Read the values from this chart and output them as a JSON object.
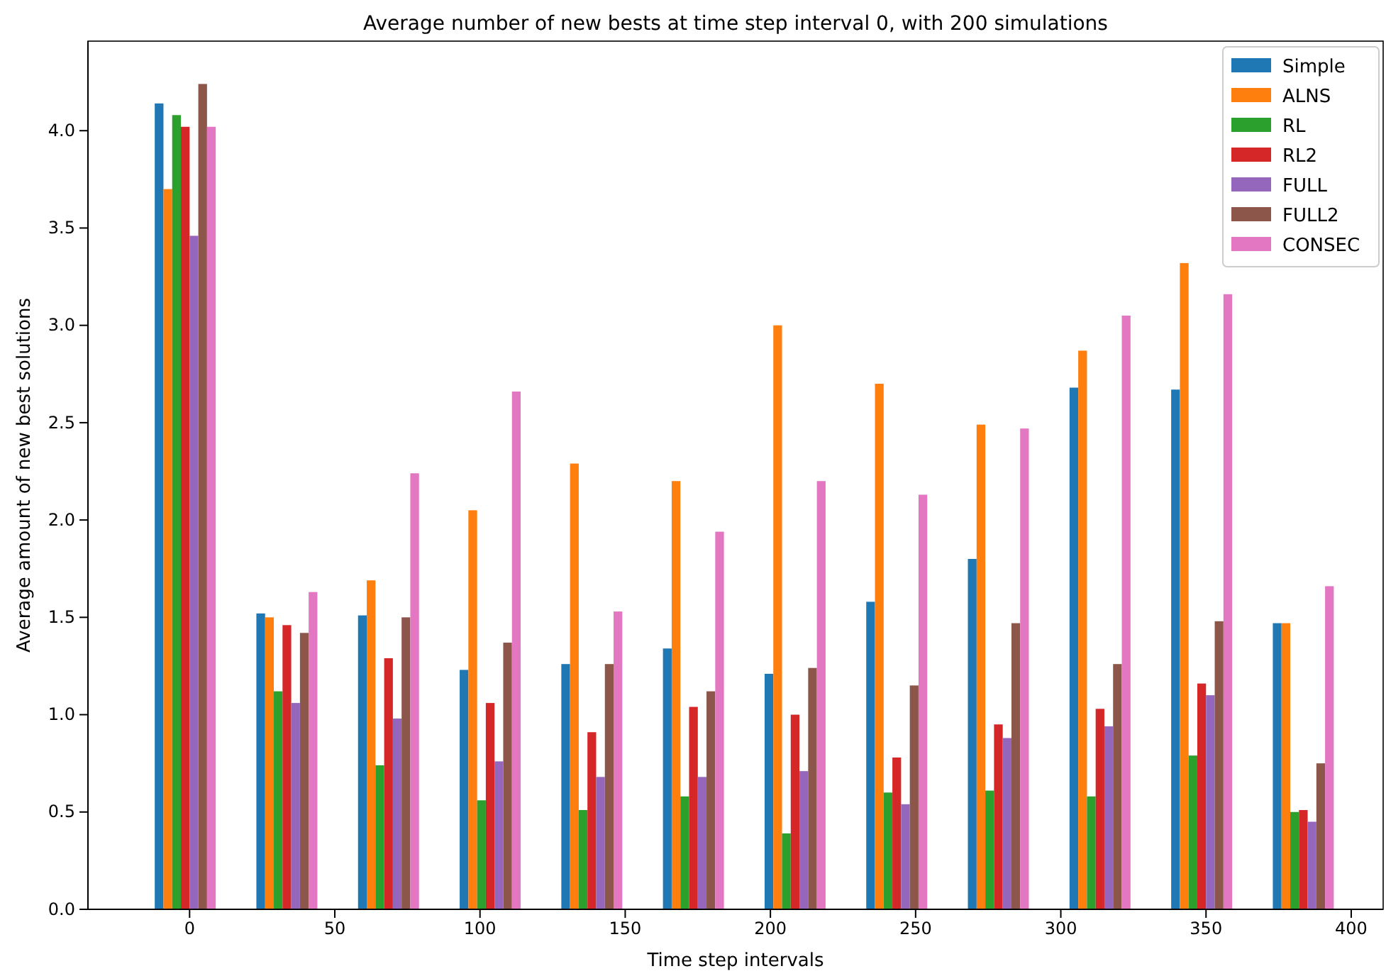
{
  "chart_data": {
    "type": "bar",
    "title": "Average number of new bests at time step interval 0, with 200 simulations",
    "xlabel": "Time step intervals",
    "ylabel": "Average amount of new best solutions",
    "x": [
      0,
      35,
      70,
      105,
      140,
      175,
      210,
      245,
      280,
      315,
      350,
      385
    ],
    "series": [
      {
        "name": "Simple",
        "color": "#1f77b4",
        "values": [
          4.14,
          1.52,
          1.51,
          1.23,
          1.26,
          1.34,
          1.21,
          1.58,
          1.8,
          2.68,
          2.67,
          1.47
        ]
      },
      {
        "name": "ALNS",
        "color": "#ff7f0e",
        "values": [
          3.7,
          1.5,
          1.69,
          2.05,
          2.29,
          2.2,
          3.0,
          2.7,
          2.49,
          2.87,
          3.32,
          1.47
        ]
      },
      {
        "name": "RL",
        "color": "#2ca02c",
        "values": [
          4.08,
          1.12,
          0.74,
          0.56,
          0.51,
          0.58,
          0.39,
          0.6,
          0.61,
          0.58,
          0.79,
          0.5
        ]
      },
      {
        "name": "RL2",
        "color": "#d62728",
        "values": [
          4.02,
          1.46,
          1.29,
          1.06,
          0.91,
          1.04,
          1.0,
          0.78,
          0.95,
          1.03,
          1.16,
          0.51
        ]
      },
      {
        "name": "FULL",
        "color": "#9467bd",
        "values": [
          3.46,
          1.06,
          0.98,
          0.76,
          0.68,
          0.68,
          0.71,
          0.54,
          0.88,
          0.94,
          1.1,
          0.45
        ]
      },
      {
        "name": "FULL2",
        "color": "#8c564b",
        "values": [
          4.24,
          1.42,
          1.5,
          1.37,
          1.26,
          1.12,
          1.24,
          1.15,
          1.47,
          1.26,
          1.48,
          0.75
        ]
      },
      {
        "name": "CONSEC",
        "color": "#e377c2",
        "values": [
          4.02,
          1.63,
          2.24,
          2.66,
          1.53,
          1.94,
          2.2,
          2.13,
          2.47,
          3.05,
          3.16,
          1.66
        ]
      }
    ],
    "xlim": [
      -35,
      411
    ],
    "xticks": [
      0,
      50,
      100,
      150,
      200,
      250,
      300,
      350,
      400
    ],
    "ylim": [
      0,
      4.46
    ],
    "yticks": [
      {
        "value": 0,
        "label": "0.0"
      },
      {
        "value": 0.5,
        "label": "0.5"
      },
      {
        "value": 1,
        "label": "1.0"
      },
      {
        "value": 1.5,
        "label": "1.5"
      },
      {
        "value": 2,
        "label": "2.0"
      },
      {
        "value": 2.5,
        "label": "2.5"
      },
      {
        "value": 3,
        "label": "3.0"
      },
      {
        "value": 3.5,
        "label": "3.5"
      },
      {
        "value": 4,
        "label": "4.0"
      }
    ],
    "legend": "top right"
  }
}
